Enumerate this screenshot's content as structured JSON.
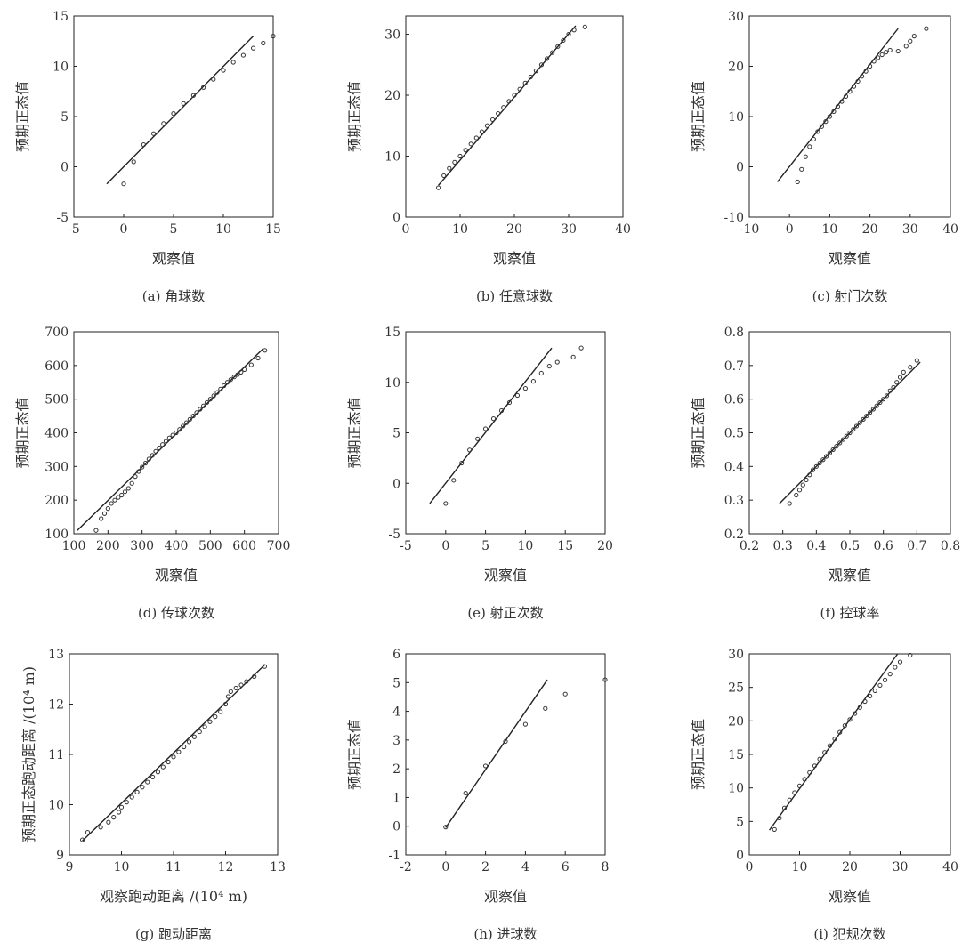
{
  "chart_data": [
    {
      "type": "scatter",
      "caption": "(a) 角球数",
      "xlabel": "观察值",
      "ylabel": "预期正态值",
      "xlim": [
        -5,
        15
      ],
      "ylim": [
        -5,
        15
      ],
      "xticks": [
        "-5",
        "0",
        "5",
        "10",
        "15"
      ],
      "yticks": [
        "-5",
        "0",
        "5",
        "10",
        "15"
      ],
      "line": [
        [
          -1.7,
          -1.7
        ],
        [
          13,
          13
        ]
      ],
      "points": [
        [
          0,
          -1.7
        ],
        [
          1,
          0.5
        ],
        [
          2,
          2.2
        ],
        [
          3,
          3.3
        ],
        [
          4,
          4.3
        ],
        [
          5,
          5.3
        ],
        [
          6,
          6.3
        ],
        [
          7,
          7.1
        ],
        [
          8,
          7.9
        ],
        [
          9,
          8.7
        ],
        [
          10,
          9.6
        ],
        [
          11,
          10.4
        ],
        [
          12,
          11.1
        ],
        [
          13,
          11.8
        ],
        [
          14,
          12.3
        ],
        [
          15,
          13
        ]
      ]
    },
    {
      "type": "scatter",
      "caption": "(b) 任意球数",
      "xlabel": "观察值",
      "ylabel": "预期正态值",
      "xlim": [
        0,
        40
      ],
      "ylim": [
        0,
        33
      ],
      "xticks": [
        "0",
        "10",
        "20",
        "30",
        "40"
      ],
      "yticks": [
        "0",
        "10",
        "20",
        "30"
      ],
      "line": [
        [
          6,
          5.2
        ],
        [
          31.3,
          31.4
        ]
      ],
      "points": [
        [
          6,
          4.8
        ],
        [
          7,
          6.8
        ],
        [
          8,
          8
        ],
        [
          9,
          9
        ],
        [
          10,
          10
        ],
        [
          11,
          11
        ],
        [
          12,
          12
        ],
        [
          13,
          13
        ],
        [
          14,
          14
        ],
        [
          15,
          15
        ],
        [
          16,
          16
        ],
        [
          17,
          17
        ],
        [
          18,
          18
        ],
        [
          19,
          19
        ],
        [
          20,
          20
        ],
        [
          21,
          21
        ],
        [
          22,
          22
        ],
        [
          23,
          23
        ],
        [
          24,
          24
        ],
        [
          25,
          25
        ],
        [
          26,
          26
        ],
        [
          27,
          27
        ],
        [
          28,
          28
        ],
        [
          29,
          29
        ],
        [
          30,
          30
        ],
        [
          31,
          30.7
        ],
        [
          33,
          31.2
        ]
      ]
    },
    {
      "type": "scatter",
      "caption": "(c) 射门次数",
      "xlabel": "观察值",
      "ylabel": "预期正态值",
      "xlim": [
        -10,
        40
      ],
      "ylim": [
        -10,
        30
      ],
      "xticks": [
        "-10",
        "0",
        "10",
        "20",
        "30",
        "40"
      ],
      "yticks": [
        "-10",
        "0",
        "10",
        "20",
        "30"
      ],
      "line": [
        [
          -3,
          -3
        ],
        [
          27,
          27.5
        ]
      ],
      "points": [
        [
          2,
          -3
        ],
        [
          3,
          -0.5
        ],
        [
          4,
          2
        ],
        [
          5,
          4
        ],
        [
          6,
          5.5
        ],
        [
          7,
          7
        ],
        [
          8,
          8
        ],
        [
          9,
          9
        ],
        [
          10,
          10
        ],
        [
          11,
          11
        ],
        [
          12,
          12
        ],
        [
          13,
          13
        ],
        [
          14,
          14
        ],
        [
          15,
          15
        ],
        [
          16,
          16
        ],
        [
          17,
          17
        ],
        [
          18,
          18
        ],
        [
          19,
          19
        ],
        [
          20,
          20
        ],
        [
          21,
          21
        ],
        [
          22,
          21.7
        ],
        [
          23,
          22.3
        ],
        [
          24,
          22.8
        ],
        [
          25,
          23.2
        ],
        [
          27,
          23
        ],
        [
          29,
          24
        ],
        [
          30,
          25
        ],
        [
          31,
          26
        ],
        [
          34,
          27.5
        ]
      ]
    },
    {
      "type": "scatter",
      "caption": "(d) 传球次数",
      "xlabel": "观察值",
      "ylabel": "预期正态值",
      "xlim": [
        100,
        700
      ],
      "ylim": [
        100,
        700
      ],
      "xticks": [
        "100",
        "200",
        "300",
        "400",
        "500",
        "600",
        "700"
      ],
      "yticks": [
        "100",
        "200",
        "300",
        "400",
        "500",
        "600",
        "700"
      ],
      "line": [
        [
          110,
          110
        ],
        [
          655,
          650
        ]
      ],
      "points": [
        [
          165,
          110
        ],
        [
          180,
          145
        ],
        [
          190,
          160
        ],
        [
          200,
          175
        ],
        [
          210,
          190
        ],
        [
          220,
          200
        ],
        [
          230,
          208
        ],
        [
          240,
          215
        ],
        [
          250,
          225
        ],
        [
          260,
          235
        ],
        [
          270,
          250
        ],
        [
          280,
          270
        ],
        [
          290,
          285
        ],
        [
          300,
          298
        ],
        [
          310,
          310
        ],
        [
          320,
          322
        ],
        [
          330,
          333
        ],
        [
          340,
          345
        ],
        [
          350,
          355
        ],
        [
          360,
          365
        ],
        [
          370,
          375
        ],
        [
          380,
          385
        ],
        [
          390,
          393
        ],
        [
          400,
          400
        ],
        [
          410,
          410
        ],
        [
          420,
          420
        ],
        [
          430,
          430
        ],
        [
          440,
          440
        ],
        [
          450,
          450
        ],
        [
          460,
          460
        ],
        [
          470,
          470
        ],
        [
          480,
          480
        ],
        [
          490,
          490
        ],
        [
          500,
          500
        ],
        [
          510,
          510
        ],
        [
          520,
          520
        ],
        [
          530,
          530
        ],
        [
          540,
          540
        ],
        [
          550,
          550
        ],
        [
          560,
          558
        ],
        [
          570,
          566
        ],
        [
          580,
          573
        ],
        [
          590,
          580
        ],
        [
          600,
          588
        ],
        [
          620,
          602
        ],
        [
          640,
          622
        ],
        [
          660,
          645
        ]
      ]
    },
    {
      "type": "scatter",
      "caption": "(e) 射正次数",
      "xlabel": "观察值",
      "ylabel": "预期正态值",
      "xlim": [
        -5,
        20
      ],
      "ylim": [
        -5,
        15
      ],
      "xticks": [
        "-5",
        "0",
        "5",
        "10",
        "15",
        "20"
      ],
      "yticks": [
        "-5",
        "0",
        "5",
        "10",
        "15"
      ],
      "line": [
        [
          -2,
          -2
        ],
        [
          13.3,
          13.4
        ]
      ],
      "points": [
        [
          0,
          -2
        ],
        [
          1,
          0.3
        ],
        [
          2,
          2
        ],
        [
          3,
          3.3
        ],
        [
          4,
          4.4
        ],
        [
          5,
          5.4
        ],
        [
          6,
          6.4
        ],
        [
          7,
          7.2
        ],
        [
          8,
          8
        ],
        [
          9,
          8.7
        ],
        [
          10,
          9.4
        ],
        [
          11,
          10.1
        ],
        [
          12,
          10.9
        ],
        [
          13,
          11.6
        ],
        [
          14,
          12
        ],
        [
          16,
          12.5
        ],
        [
          17,
          13.4
        ]
      ]
    },
    {
      "type": "scatter",
      "caption": "(f) 控球率",
      "xlabel": "观察值",
      "ylabel": "预期正态值",
      "xlim": [
        0.2,
        0.8
      ],
      "ylim": [
        0.2,
        0.8
      ],
      "xticks": [
        "0.2",
        "0.3",
        "0.4",
        "0.5",
        "0.6",
        "0.7",
        "0.8"
      ],
      "yticks": [
        "0.2",
        "0.3",
        "0.4",
        "0.5",
        "0.6",
        "0.7",
        "0.8"
      ],
      "line": [
        [
          0.29,
          0.29
        ],
        [
          0.71,
          0.71
        ]
      ],
      "points": [
        [
          0.32,
          0.29
        ],
        [
          0.34,
          0.315
        ],
        [
          0.35,
          0.33
        ],
        [
          0.36,
          0.345
        ],
        [
          0.37,
          0.36
        ],
        [
          0.38,
          0.375
        ],
        [
          0.39,
          0.39
        ],
        [
          0.4,
          0.4
        ],
        [
          0.41,
          0.41
        ],
        [
          0.42,
          0.42
        ],
        [
          0.43,
          0.43
        ],
        [
          0.44,
          0.44
        ],
        [
          0.45,
          0.45
        ],
        [
          0.46,
          0.46
        ],
        [
          0.47,
          0.47
        ],
        [
          0.48,
          0.48
        ],
        [
          0.49,
          0.49
        ],
        [
          0.5,
          0.5
        ],
        [
          0.51,
          0.51
        ],
        [
          0.52,
          0.52
        ],
        [
          0.53,
          0.53
        ],
        [
          0.54,
          0.54
        ],
        [
          0.55,
          0.55
        ],
        [
          0.56,
          0.56
        ],
        [
          0.57,
          0.57
        ],
        [
          0.58,
          0.58
        ],
        [
          0.59,
          0.59
        ],
        [
          0.6,
          0.6
        ],
        [
          0.61,
          0.61
        ],
        [
          0.62,
          0.625
        ],
        [
          0.63,
          0.635
        ],
        [
          0.64,
          0.65
        ],
        [
          0.65,
          0.665
        ],
        [
          0.66,
          0.68
        ],
        [
          0.68,
          0.695
        ],
        [
          0.7,
          0.715
        ]
      ]
    },
    {
      "type": "scatter",
      "caption": "(g) 跑动距离",
      "xlabel": "观察跑动距离 /(10⁴ m)",
      "ylabel": "预期正态跑动距离 /(10⁴ m)",
      "xlim": [
        9,
        13
      ],
      "ylim": [
        9,
        13
      ],
      "xticks": [
        "9",
        "10",
        "11",
        "12",
        "13"
      ],
      "yticks": [
        "9",
        "10",
        "11",
        "12",
        "13"
      ],
      "line": [
        [
          9.25,
          9.28
        ],
        [
          12.75,
          12.78
        ]
      ],
      "points": [
        [
          9.25,
          9.3
        ],
        [
          9.35,
          9.45
        ],
        [
          9.6,
          9.55
        ],
        [
          9.75,
          9.65
        ],
        [
          9.85,
          9.75
        ],
        [
          9.95,
          9.85
        ],
        [
          10.0,
          9.95
        ],
        [
          10.1,
          10.05
        ],
        [
          10.2,
          10.15
        ],
        [
          10.3,
          10.25
        ],
        [
          10.4,
          10.35
        ],
        [
          10.5,
          10.45
        ],
        [
          10.6,
          10.55
        ],
        [
          10.7,
          10.65
        ],
        [
          10.8,
          10.75
        ],
        [
          10.9,
          10.85
        ],
        [
          11.0,
          10.95
        ],
        [
          11.1,
          11.05
        ],
        [
          11.2,
          11.15
        ],
        [
          11.3,
          11.25
        ],
        [
          11.4,
          11.35
        ],
        [
          11.5,
          11.45
        ],
        [
          11.6,
          11.55
        ],
        [
          11.7,
          11.65
        ],
        [
          11.8,
          11.75
        ],
        [
          11.9,
          11.85
        ],
        [
          12.0,
          12.0
        ],
        [
          12.05,
          12.15
        ],
        [
          12.1,
          12.25
        ],
        [
          12.2,
          12.32
        ],
        [
          12.3,
          12.38
        ],
        [
          12.4,
          12.45
        ],
        [
          12.55,
          12.55
        ],
        [
          12.75,
          12.75
        ]
      ]
    },
    {
      "type": "scatter",
      "caption": "(h) 进球数",
      "xlabel": "观察值",
      "ylabel": "预期正态值",
      "xlim": [
        -2,
        8
      ],
      "ylim": [
        -1,
        6
      ],
      "xticks": [
        "-2",
        "0",
        "2",
        "4",
        "6",
        "8"
      ],
      "yticks": [
        "-1",
        "0",
        "1",
        "2",
        "3",
        "4",
        "5",
        "6"
      ],
      "line": [
        [
          0,
          -0.05
        ],
        [
          5.1,
          5.1
        ]
      ],
      "points": [
        [
          0,
          -0.03
        ],
        [
          1,
          1.15
        ],
        [
          2,
          2.1
        ],
        [
          3,
          2.95
        ],
        [
          4,
          3.55
        ],
        [
          5,
          4.1
        ],
        [
          6,
          4.6
        ],
        [
          8,
          5.1
        ]
      ]
    },
    {
      "type": "scatter",
      "caption": "(i) 犯规次数",
      "xlabel": "观察值",
      "ylabel": "预期正态值",
      "xlim": [
        0,
        40
      ],
      "ylim": [
        0,
        30
      ],
      "xticks": [
        "0",
        "10",
        "20",
        "30",
        "40"
      ],
      "yticks": [
        "0",
        "5",
        "10",
        "15",
        "20",
        "25",
        "30"
      ],
      "line": [
        [
          4,
          3.7
        ],
        [
          29.5,
          30
        ]
      ],
      "points": [
        [
          5,
          3.8
        ],
        [
          6,
          5.5
        ],
        [
          7,
          7
        ],
        [
          8,
          8.2
        ],
        [
          9,
          9.3
        ],
        [
          10,
          10.3
        ],
        [
          11,
          11.3
        ],
        [
          12,
          12.3
        ],
        [
          13,
          13.3
        ],
        [
          14,
          14.3
        ],
        [
          15,
          15.3
        ],
        [
          16,
          16.3
        ],
        [
          17,
          17.3
        ],
        [
          18,
          18.3
        ],
        [
          19,
          19.3
        ],
        [
          20,
          20.2
        ],
        [
          21,
          21.1
        ],
        [
          22,
          22
        ],
        [
          23,
          22.9
        ],
        [
          24,
          23.7
        ],
        [
          25,
          24.5
        ],
        [
          26,
          25.3
        ],
        [
          27,
          26.1
        ],
        [
          28,
          27
        ],
        [
          29,
          28
        ],
        [
          30,
          28.8
        ],
        [
          32,
          29.8
        ]
      ]
    }
  ]
}
